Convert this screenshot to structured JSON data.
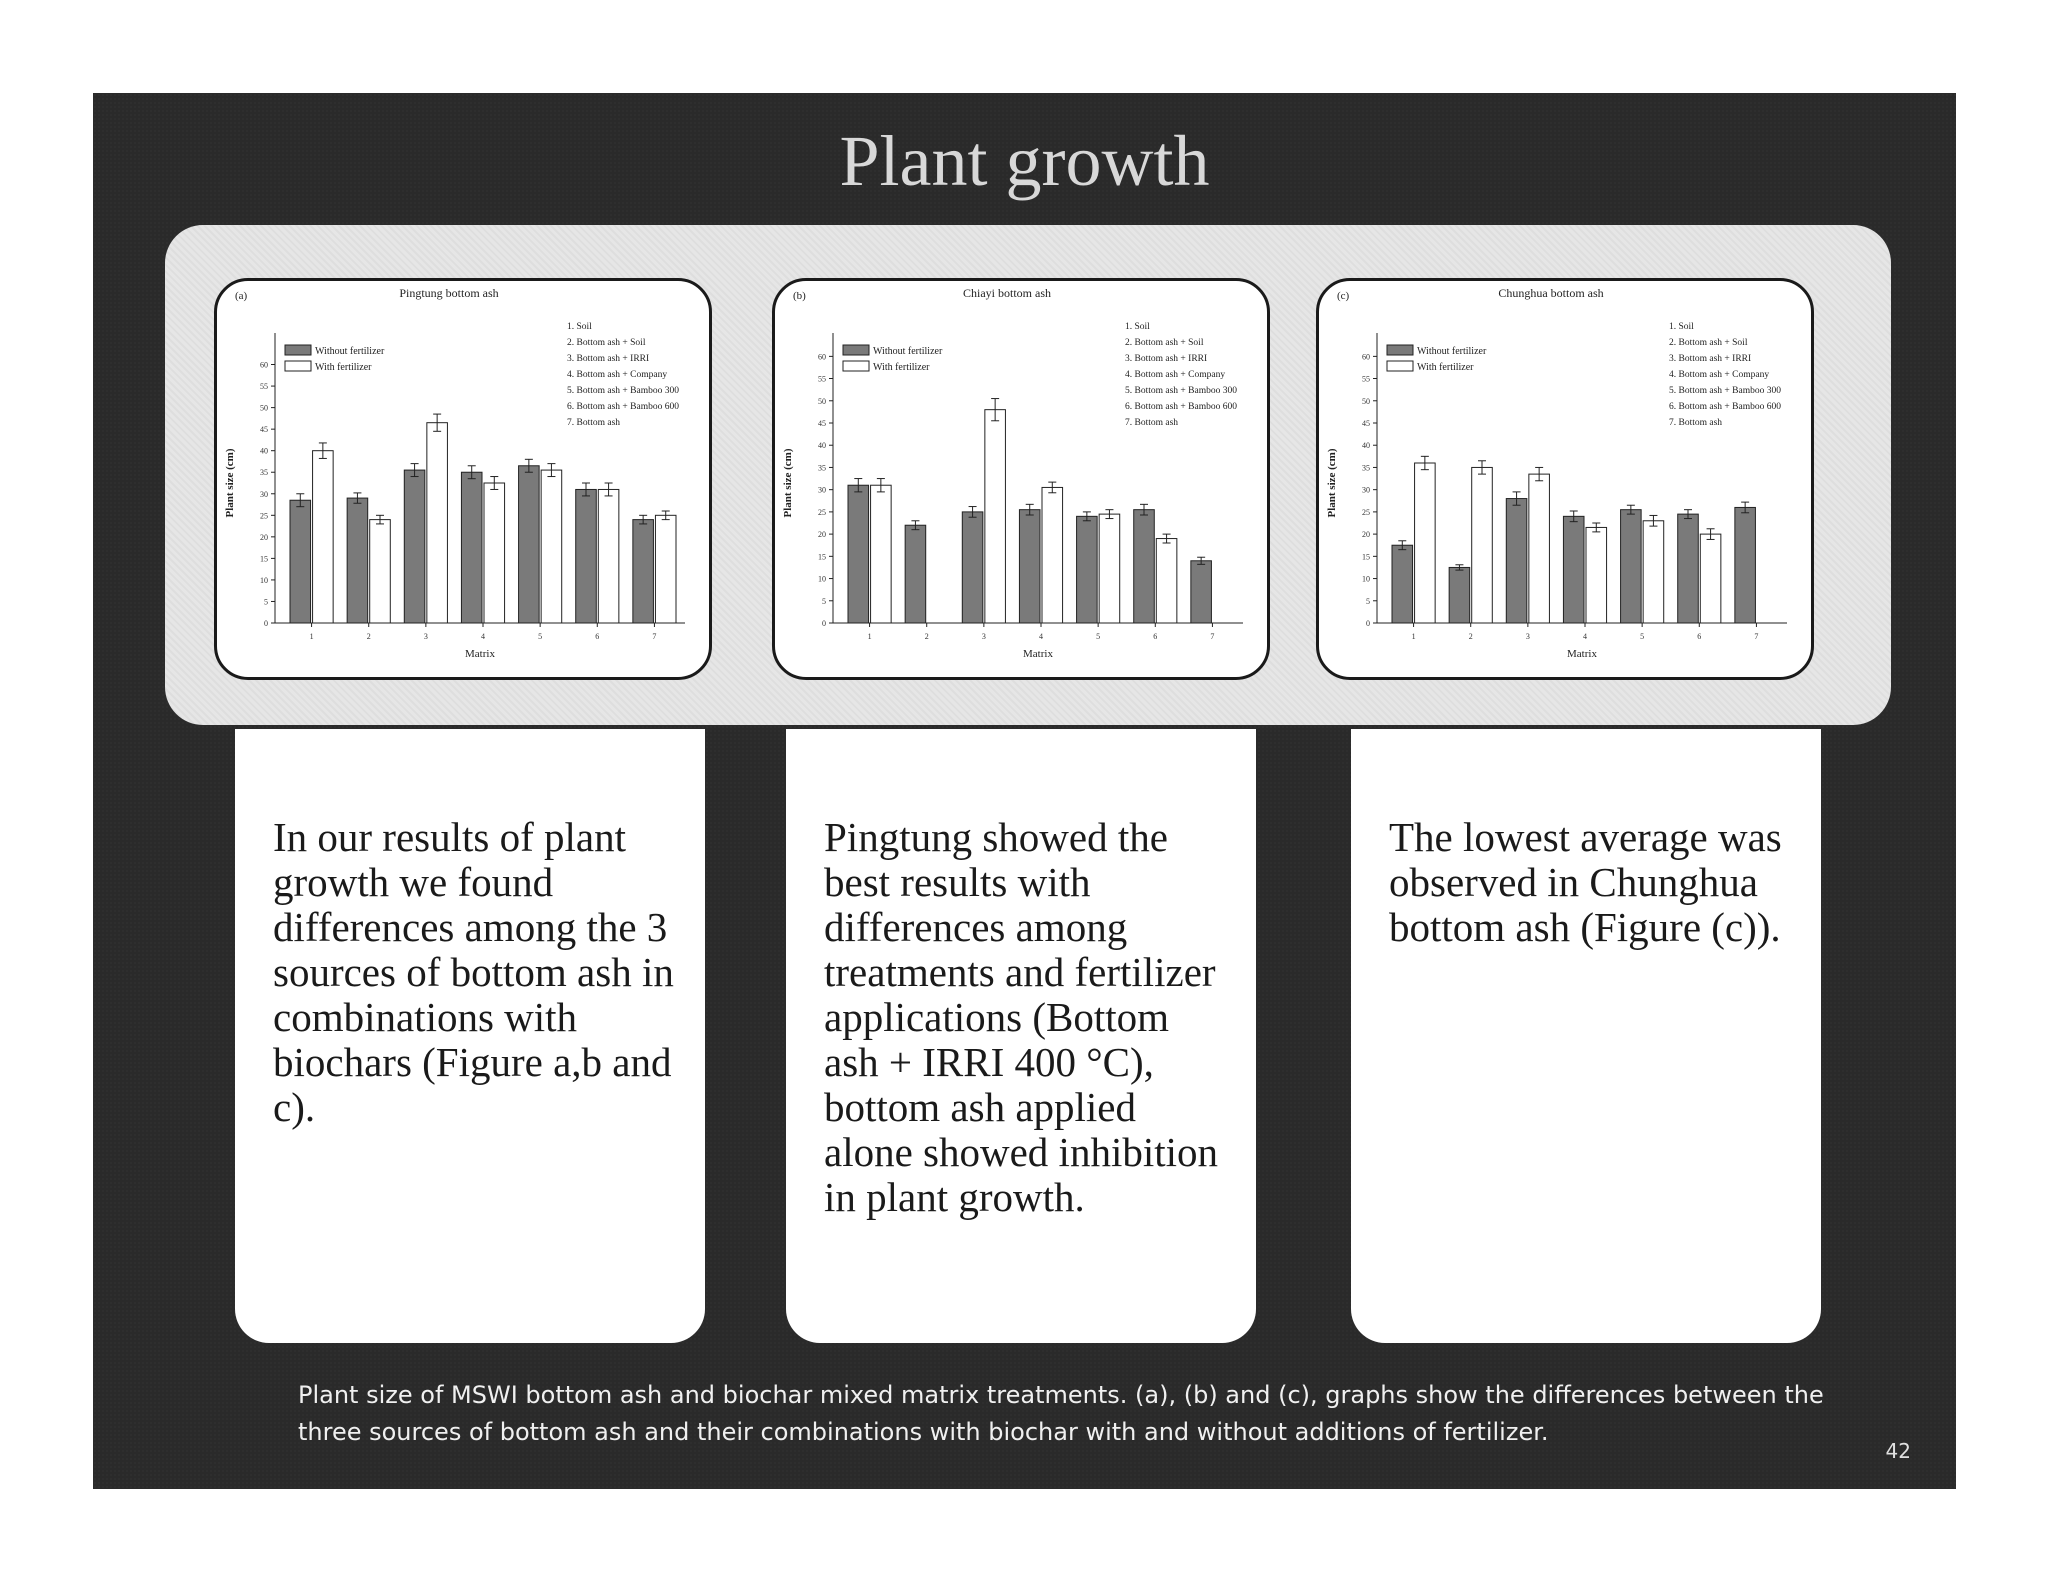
{
  "slide": {
    "title": "Plant growth",
    "caption": "Plant size of MSWI bottom ash and biochar mixed matrix treatments. (a), (b) and (c), graphs show the differences between the three sources of bottom ash and their combinations with biochar with and without additions of fertilizer.",
    "page_number": "42"
  },
  "text_boxes": [
    "In our results of plant growth we found differences among the 3 sources of bottom ash in combinations with biochars (Figure a,b and c).",
    "Pingtung showed the best results with differences among treatments and fertilizer applications (Bottom ash + IRRI 400 °C), bottom ash applied alone showed inhibition in plant growth.",
    "The lowest average was observed in Chunghua bottom ash (Figure (c))."
  ],
  "colors": {
    "slide_bg": "#2a2a2a",
    "band_bg": "#e6e6e6",
    "bar_without": "#7a7a7a",
    "bar_with": "#ffffff"
  },
  "chart_data": [
    {
      "type": "bar",
      "panel": "(a)",
      "title": "Pingtung bottom ash",
      "xlabel": "Matrix",
      "ylabel": "Plant size (cm)",
      "categories": [
        "1",
        "2",
        "3",
        "4",
        "5",
        "6",
        "7"
      ],
      "ylim": [
        0,
        65
      ],
      "yticks": [
        0,
        5,
        10,
        15,
        20,
        25,
        30,
        35,
        40,
        45,
        50,
        55,
        60
      ],
      "legend_position": "top-left",
      "matrix_legend": [
        "1. Soil",
        "2. Bottom ash + Soil",
        "3. Bottom ash + IRRI",
        "4. Bottom ash + Company",
        "5. Bottom ash + Bamboo 300",
        "6. Bottom ash + Bamboo 600",
        "7. Bottom ash"
      ],
      "series": [
        {
          "name": "Without fertilizer",
          "values": [
            28.5,
            29,
            35.5,
            35,
            36.5,
            31,
            24
          ],
          "errors": [
            1.5,
            1.2,
            1.5,
            1.5,
            1.5,
            1.5,
            1
          ]
        },
        {
          "name": "With fertilizer",
          "values": [
            40,
            24,
            46.5,
            32.5,
            35.5,
            31,
            25
          ],
          "errors": [
            1.8,
            1,
            2,
            1.5,
            1.5,
            1.5,
            1
          ]
        }
      ]
    },
    {
      "type": "bar",
      "panel": "(b)",
      "title": "Chiayi bottom ash",
      "xlabel": "Matrix",
      "ylabel": "Plant size (cm)",
      "categories": [
        "1",
        "2",
        "3",
        "4",
        "5",
        "6",
        "7"
      ],
      "ylim": [
        0,
        63
      ],
      "yticks": [
        0,
        5,
        10,
        15,
        20,
        25,
        30,
        35,
        40,
        45,
        50,
        55,
        60
      ],
      "legend_position": "top-left",
      "matrix_legend": [
        "1. Soil",
        "2. Bottom ash + Soil",
        "3. Bottom ash + IRRI",
        "4. Bottom ash + Company",
        "5. Bottom ash + Bamboo 300",
        "6. Bottom ash + Bamboo 600",
        "7. Bottom ash"
      ],
      "series": [
        {
          "name": "Without fertilizer",
          "values": [
            31,
            22,
            25,
            25.5,
            24,
            25.5,
            14
          ],
          "errors": [
            1.5,
            1,
            1.2,
            1.2,
            1,
            1.2,
            0.8
          ]
        },
        {
          "name": "With fertilizer",
          "values": [
            31,
            null,
            48,
            30.5,
            24.5,
            19,
            null
          ],
          "errors": [
            1.5,
            null,
            2.5,
            1.2,
            1,
            1,
            null
          ]
        }
      ]
    },
    {
      "type": "bar",
      "panel": "(c)",
      "title": "Chunghua bottom ash",
      "xlabel": "Matrix",
      "ylabel": "Plant size (cm)",
      "categories": [
        "1",
        "2",
        "3",
        "4",
        "5",
        "6",
        "7"
      ],
      "ylim": [
        0,
        63
      ],
      "yticks": [
        0,
        5,
        10,
        15,
        20,
        25,
        30,
        35,
        40,
        45,
        50,
        55,
        60
      ],
      "legend_position": "top-left",
      "matrix_legend": [
        "1. Soil",
        "2. Bottom ash + Soil",
        "3. Bottom ash + IRRI",
        "4. Bottom ash + Company",
        "5. Bottom ash + Bamboo 300",
        "6. Bottom ash + Bamboo 600",
        "7. Bottom ash"
      ],
      "series": [
        {
          "name": "Without fertilizer",
          "values": [
            17.5,
            12.5,
            28,
            24,
            25.5,
            24.5,
            26
          ],
          "errors": [
            1,
            0.6,
            1.5,
            1.2,
            1,
            1,
            1.2
          ]
        },
        {
          "name": "With fertilizer",
          "values": [
            36,
            35,
            33.5,
            21.5,
            23,
            20,
            null
          ],
          "errors": [
            1.5,
            1.5,
            1.5,
            1,
            1.2,
            1.2,
            null
          ]
        }
      ]
    }
  ]
}
